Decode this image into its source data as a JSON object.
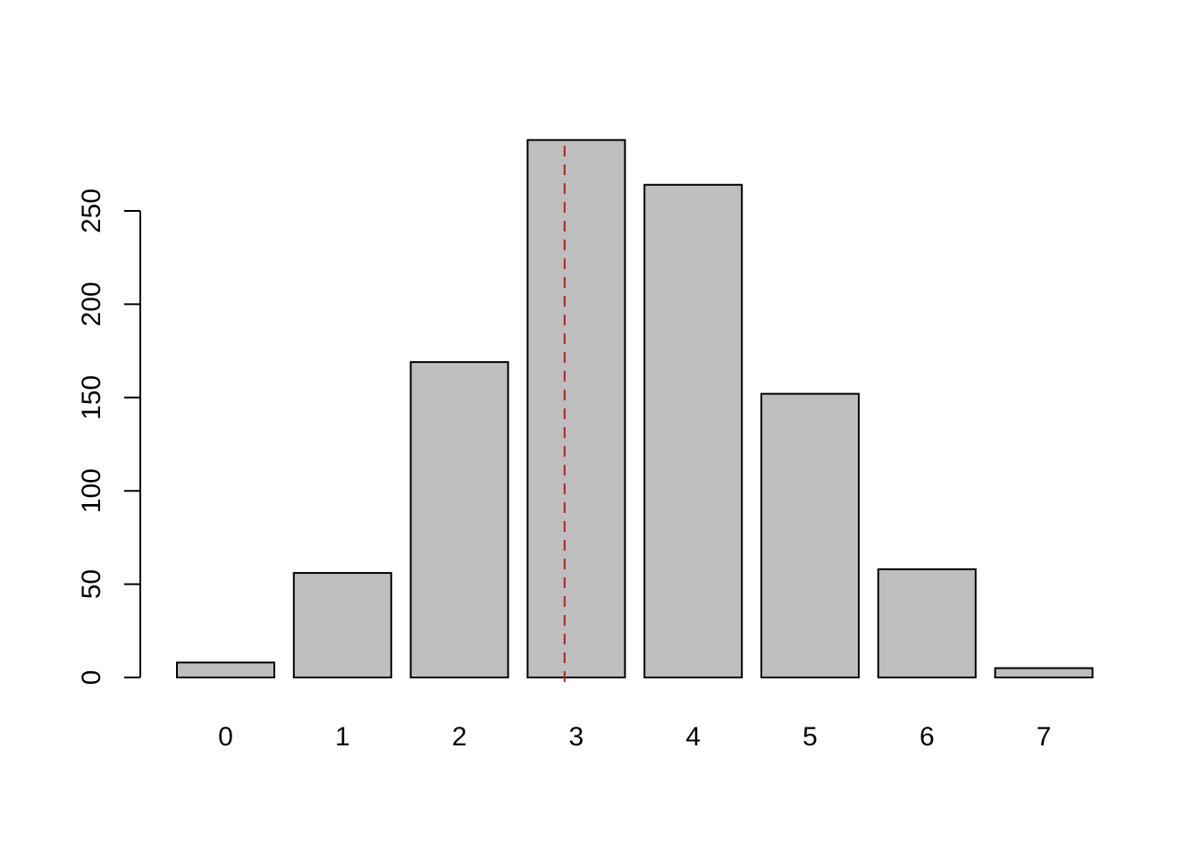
{
  "chart_data": {
    "type": "bar",
    "title": "",
    "xlabel": "",
    "ylabel": "",
    "categories": [
      "0",
      "1",
      "2",
      "3",
      "4",
      "5",
      "6",
      "7"
    ],
    "values": [
      8,
      56,
      169,
      288,
      264,
      152,
      58,
      5
    ],
    "ylim": [
      0,
      288
    ],
    "y_ticks": [
      "0",
      "50",
      "100",
      "150",
      "200",
      "250"
    ],
    "grid": false,
    "legend": "none",
    "bar_fill": "#bebebe",
    "bar_border": "#000000",
    "reference_line": {
      "orientation": "vertical",
      "position_between_categories": [
        "3",
        "3"
      ],
      "category_offset": -0.1,
      "style": "dashed",
      "color": "#b22222"
    }
  }
}
